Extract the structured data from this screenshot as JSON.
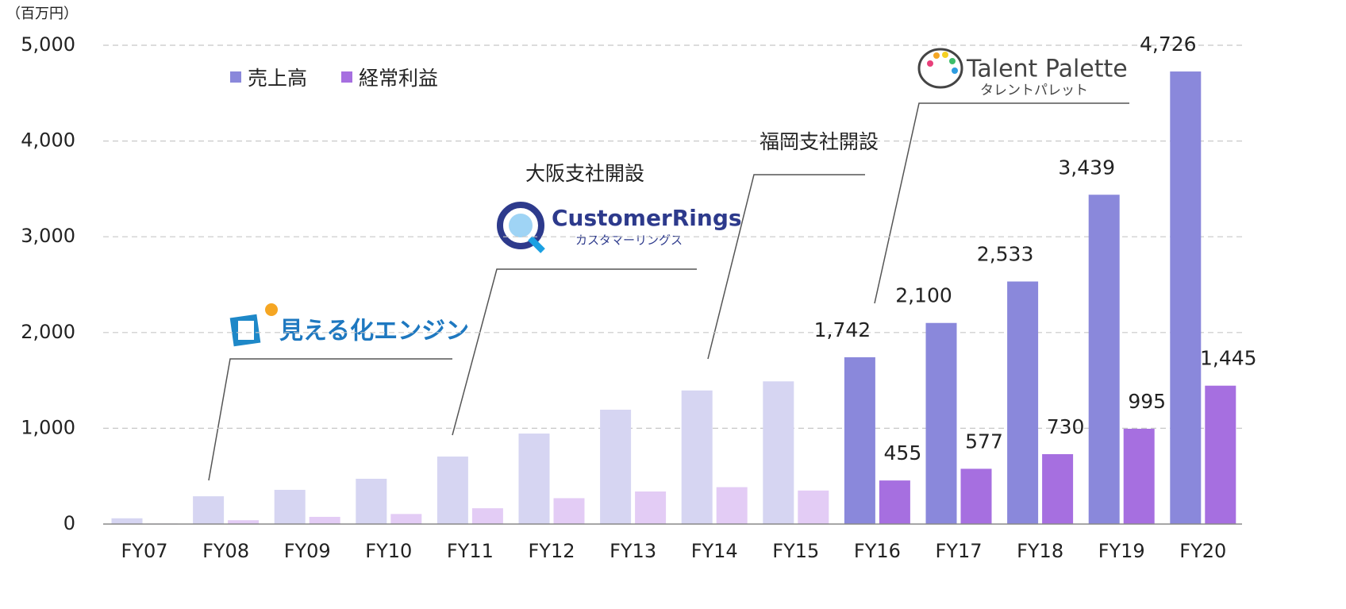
{
  "chart_data": {
    "type": "bar",
    "unit_label": "（百万円）",
    "categories": [
      "FY07",
      "FY08",
      "FY09",
      "FY10",
      "FY11",
      "FY12",
      "FY13",
      "FY14",
      "FY15",
      "FY16",
      "FY17",
      "FY18",
      "FY19",
      "FY20"
    ],
    "series": [
      {
        "name": "売上高",
        "color": "#8a88db",
        "colors": [
          "#d6d5f2",
          "#d6d5f2",
          "#d6d5f2",
          "#d6d5f2",
          "#d6d5f2",
          "#d6d5f2",
          "#d6d5f2",
          "#d6d5f2",
          "#d6d5f2",
          "#8a88db",
          "#8a88db",
          "#8a88db",
          "#8a88db",
          "#8a88db"
        ],
        "values": [
          60,
          290,
          357,
          473,
          705,
          945,
          1194,
          1395,
          1490,
          1742,
          2100,
          2533,
          3439,
          4726
        ],
        "value_labels": [
          null,
          null,
          null,
          null,
          null,
          null,
          null,
          null,
          null,
          "1,742",
          "2,100",
          "2,533",
          "3,439",
          "4,726"
        ]
      },
      {
        "name": "経常利益",
        "color": "#a66fe0",
        "colors": [
          "#e3ccf5",
          "#e3ccf5",
          "#e3ccf5",
          "#e3ccf5",
          "#e3ccf5",
          "#e3ccf5",
          "#e3ccf5",
          "#e3ccf5",
          "#e3ccf5",
          "#a66fe0",
          "#a66fe0",
          "#a66fe0",
          "#a66fe0",
          "#a66fe0"
        ],
        "values": [
          5,
          40,
          75,
          105,
          165,
          270,
          340,
          385,
          350,
          455,
          577,
          730,
          995,
          1445
        ],
        "value_labels": [
          null,
          null,
          null,
          null,
          null,
          null,
          null,
          null,
          null,
          "455",
          "577",
          "730",
          "995",
          "1,445"
        ]
      }
    ],
    "ylim": [
      0,
      5000
    ],
    "yticks": [
      0,
      {
        "value": 1000,
        "label": "1,000"
      },
      {
        "value": 2000,
        "label": "2,000"
      },
      {
        "value": 3000,
        "label": "3,000"
      },
      {
        "value": 4000,
        "label": "4,000"
      },
      {
        "value": 5000,
        "label": "5,000"
      }
    ],
    "grid": true,
    "legend": "top-left",
    "annotations": [
      "見える化エンジン",
      "CustomerRings",
      "カスタマーリングス",
      "大阪支社開設",
      "福岡支社開設",
      "Talent Palette",
      "タレントパレット"
    ]
  }
}
